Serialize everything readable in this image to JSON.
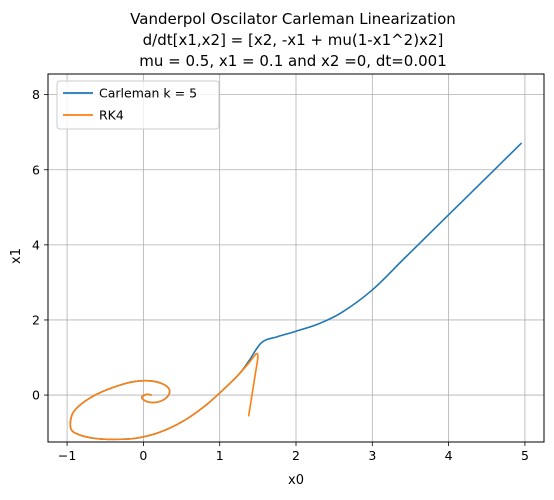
{
  "chart_data": {
    "type": "line",
    "title_lines": [
      "Vanderpol Oscilator Carleman Linearization",
      "d/dt[x1,x2] = [x2, -x1 + mu(1-x1^2)x2]",
      "mu = 0.5, x1 = 0.1 and x2 =0, dt=0.001"
    ],
    "xlabel": "x0",
    "ylabel": "x1",
    "xlim": [
      -1.25,
      5.25
    ],
    "ylim": [
      -1.25,
      8.55
    ],
    "xticks": [
      -1,
      0,
      1,
      2,
      3,
      4,
      5
    ],
    "yticks": [
      0,
      2,
      4,
      6,
      8
    ],
    "grid": true,
    "legend_position": "upper-left",
    "series": [
      {
        "name": "Carleman k = 5",
        "color": "#1f77b4",
        "x": [
          0.1,
          0.05,
          -0.02,
          0.02,
          0.12,
          0.23,
          0.32,
          0.34,
          0.25,
          0.08,
          -0.15,
          -0.4,
          -0.65,
          -0.85,
          -0.94,
          -0.95,
          -0.85,
          -0.65,
          -0.4,
          -0.1,
          0.2,
          0.5,
          0.8,
          1.05,
          1.25,
          1.38,
          1.55,
          1.75,
          2.0,
          2.3,
          2.6,
          3.0,
          3.4,
          3.8,
          4.2,
          4.6,
          4.95
        ],
        "y": [
          0.0,
          0.02,
          -0.05,
          -0.15,
          -0.2,
          -0.16,
          -0.03,
          0.15,
          0.3,
          0.38,
          0.35,
          0.2,
          -0.02,
          -0.3,
          -0.55,
          -0.9,
          -1.05,
          -1.15,
          -1.18,
          -1.15,
          -1.0,
          -0.72,
          -0.3,
          0.15,
          0.55,
          0.9,
          1.4,
          1.55,
          1.7,
          1.9,
          2.2,
          2.8,
          3.6,
          4.4,
          5.2,
          6.0,
          6.7
        ]
      },
      {
        "name": "RK4",
        "color": "#ff7f0e",
        "x": [
          0.1,
          0.05,
          -0.02,
          0.02,
          0.12,
          0.23,
          0.32,
          0.34,
          0.25,
          0.08,
          -0.15,
          -0.4,
          -0.65,
          -0.85,
          -0.94,
          -0.95,
          -0.85,
          -0.65,
          -0.4,
          -0.1,
          0.2,
          0.5,
          0.8,
          1.05,
          1.25,
          1.4,
          1.48,
          1.5,
          1.47,
          1.38
        ],
        "y": [
          0.0,
          0.02,
          -0.05,
          -0.15,
          -0.2,
          -0.16,
          -0.03,
          0.15,
          0.3,
          0.38,
          0.35,
          0.2,
          -0.02,
          -0.3,
          -0.55,
          -0.9,
          -1.05,
          -1.15,
          -1.18,
          -1.15,
          -1.0,
          -0.72,
          -0.3,
          0.15,
          0.55,
          0.9,
          1.1,
          1.0,
          0.6,
          -0.55
        ]
      }
    ]
  }
}
